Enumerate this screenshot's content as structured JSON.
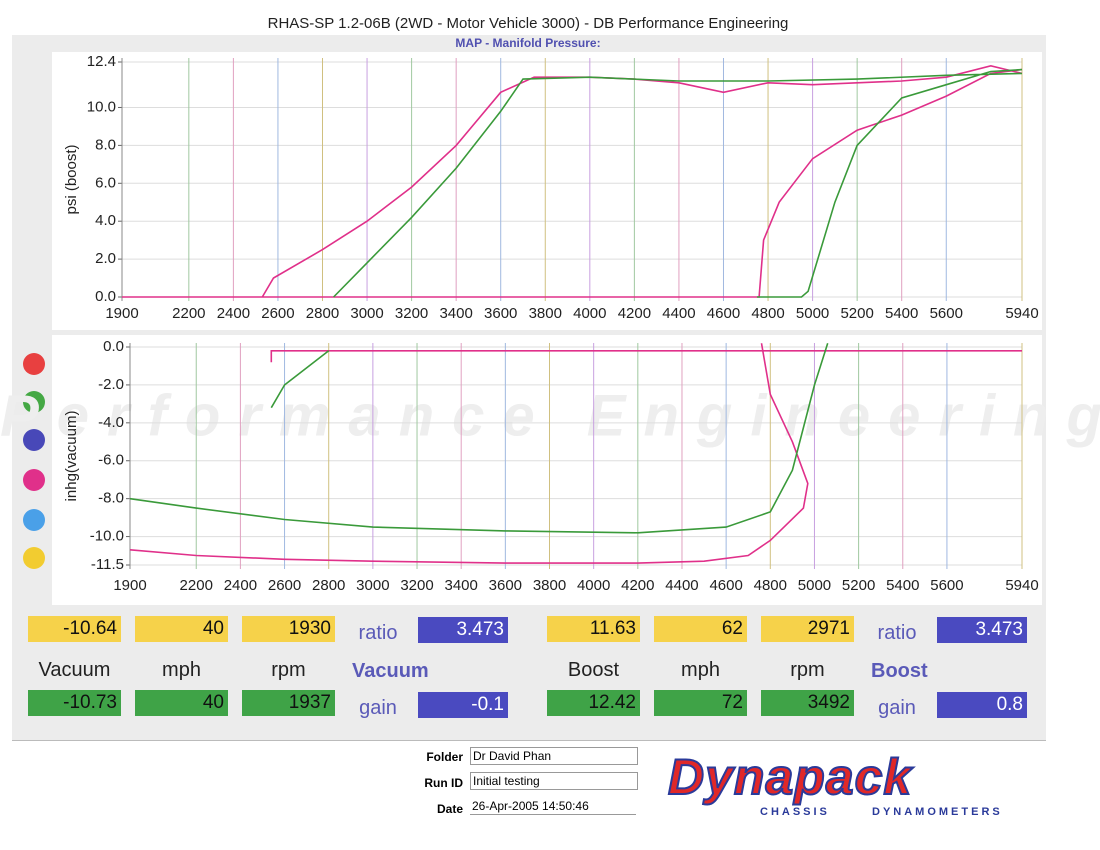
{
  "header": {
    "title": "RHAS-SP 1.2-06B  (2WD - Motor Vehicle 3000) - DB Performance Engineering"
  },
  "chart_data": [
    {
      "type": "line",
      "title": "MAP - Manifold Pressure:",
      "ylabel": "psi (boost)",
      "xlim": [
        1900,
        5940
      ],
      "xticks": [
        1900,
        2200,
        2400,
        2600,
        2800,
        3000,
        3200,
        3400,
        3600,
        3800,
        4000,
        4200,
        4400,
        4600,
        4800,
        5000,
        5200,
        5400,
        5600,
        5940
      ],
      "ylim": [
        0,
        12.4
      ],
      "yticks": [
        {
          "value": 0,
          "label": "0.0"
        },
        {
          "value": 2,
          "label": "2.0"
        },
        {
          "value": 4,
          "label": "4.0"
        },
        {
          "value": 6,
          "label": "6.0"
        },
        {
          "value": 8,
          "label": "8.0"
        },
        {
          "value": 10,
          "label": "10.0"
        },
        12.4
      ],
      "grid": true,
      "series": [
        {
          "color": "#e0308a",
          "x": [
            2530,
            2580,
            2800,
            3000,
            3200,
            3400,
            3600,
            3750,
            4000,
            4200,
            4400,
            4600,
            4800,
            5000,
            5200,
            5400,
            5600,
            5800,
            5940,
            null,
            1900,
            4760,
            4780,
            4850,
            5000,
            5200,
            5400,
            5600,
            5800,
            5940
          ],
          "values": [
            0,
            1.0,
            2.5,
            4.0,
            5.8,
            8.0,
            10.8,
            11.6,
            11.6,
            11.5,
            11.3,
            10.8,
            11.3,
            11.2,
            11.3,
            11.4,
            11.6,
            12.2,
            11.8,
            null,
            0,
            0,
            3.0,
            5.0,
            7.3,
            8.8,
            9.6,
            10.6,
            11.8,
            12.0
          ]
        },
        {
          "color": "#3a9a3a",
          "x": [
            2850,
            3000,
            3200,
            3400,
            3600,
            3700,
            4000,
            4400,
            4800,
            5200,
            5600,
            5940,
            null,
            4750,
            4950,
            4980,
            5100,
            5200,
            5400,
            5600,
            5800,
            5940
          ],
          "values": [
            0,
            1.8,
            4.2,
            6.8,
            9.8,
            11.5,
            11.6,
            11.4,
            11.4,
            11.5,
            11.7,
            11.8,
            null,
            0,
            0,
            0.3,
            5.0,
            8.0,
            10.5,
            11.2,
            11.9,
            12.0
          ]
        }
      ]
    },
    {
      "type": "line",
      "ylabel": "inhg(vacuum)",
      "watermark": "Performance Engineering",
      "xlim": [
        1900,
        5940
      ],
      "xticks": [
        1900,
        2200,
        2400,
        2600,
        2800,
        3000,
        3200,
        3400,
        3600,
        3800,
        4000,
        4200,
        4400,
        4600,
        4800,
        5000,
        5200,
        5400,
        5600,
        5940
      ],
      "ylim": [
        -11.5,
        0
      ],
      "yticks": [
        -11.5,
        {
          "value": -10,
          "label": "-10.0"
        },
        {
          "value": -8,
          "label": "-8.0"
        },
        {
          "value": -6,
          "label": "-6.0"
        },
        {
          "value": -4,
          "label": "-4.0"
        },
        {
          "value": -2,
          "label": "-2.0"
        },
        {
          "value": 0,
          "label": "0.0"
        }
      ],
      "grid": true,
      "series": [
        {
          "color": "#e0308a",
          "x": [
            1900,
            2200,
            2600,
            3000,
            3600,
            4200,
            4500,
            4700,
            4800,
            4950,
            4970,
            4900,
            4800,
            4760,
            null,
            2540,
            2540,
            2560,
            5940
          ],
          "values": [
            -10.7,
            -11.0,
            -11.2,
            -11.3,
            -11.4,
            -11.4,
            -11.3,
            -11.0,
            -10.2,
            -8.5,
            -7.2,
            -5.0,
            -2.5,
            0.2,
            null,
            -0.8,
            -0.2,
            -0.2,
            -0.2
          ]
        },
        {
          "color": "#3a9a3a",
          "x": [
            1900,
            2200,
            2600,
            3000,
            3600,
            4200,
            4600,
            4800,
            4900,
            5000,
            5060,
            null,
            2540,
            2600,
            2800
          ],
          "values": [
            -8.0,
            -8.5,
            -9.1,
            -9.5,
            -9.7,
            -9.8,
            -9.5,
            -8.7,
            -6.5,
            -2.0,
            0.2,
            null,
            -3.2,
            -2.0,
            -0.2
          ]
        }
      ]
    }
  ],
  "readouts": [
    {
      "row1": [
        -10.64,
        40,
        1930
      ],
      "labels": [
        "Vacuum",
        "mph",
        "rpm"
      ],
      "row2": [
        -10.73,
        40,
        1937
      ],
      "ratio_label": "ratio",
      "ratio": 3.473,
      "heading": "Vacuum",
      "gain_label": "gain",
      "gain": -0.1
    },
    {
      "row1": [
        11.63,
        62,
        2971
      ],
      "labels": [
        "Boost",
        "mph",
        "rpm"
      ],
      "row2": [
        12.42,
        72,
        3492
      ],
      "ratio_label": "ratio",
      "ratio": 3.473,
      "heading": "Boost",
      "gain_label": "gain",
      "gain": 0.8
    }
  ],
  "footer": {
    "folder_label": "Folder",
    "folder": "Dr David Phan",
    "run_label": "Run ID",
    "run": "Initial testing",
    "date_label": "Date",
    "date": "26-Apr-2005  14:50:46",
    "logo": "Dynapack",
    "logo_left": "CHASSIS",
    "logo_right": "DYNAMOMETERS"
  }
}
